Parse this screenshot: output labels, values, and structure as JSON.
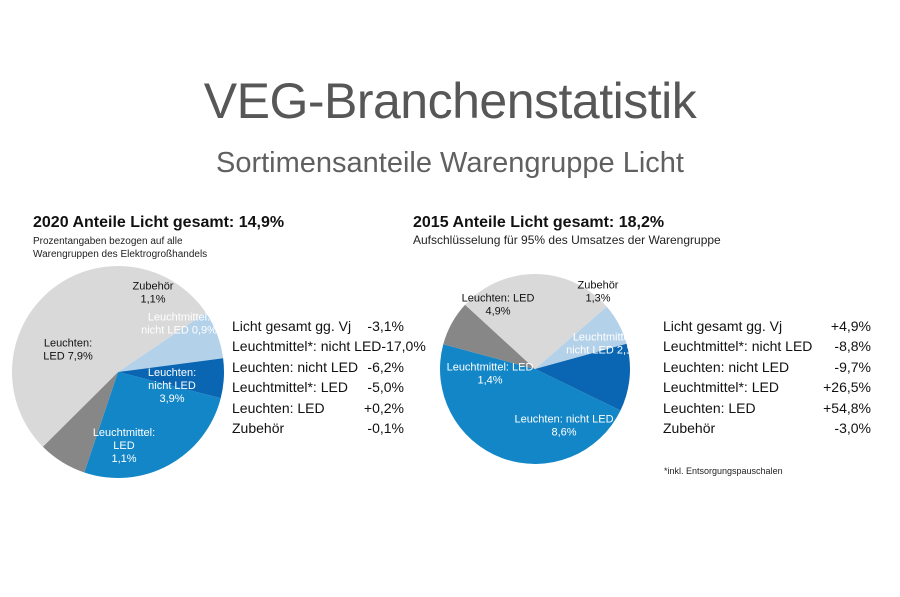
{
  "header": {
    "title": "VEG-Branchenstatistik",
    "subtitle": "Sortimensanteile Warengruppe Licht"
  },
  "colors": {
    "light_gray": "#d9d9d9",
    "light_blue": "#b4d1ea",
    "dark_blue": "#0a66b3",
    "mid_blue": "#1286c7",
    "gray": "#878787"
  },
  "chart_data": [
    {
      "type": "pie",
      "title": "2020 Anteile Licht gesamt: 14,9%",
      "note": [
        "Prozentangaben bezogen auf alle",
        "Warengruppen des Elektrogroßhandels"
      ],
      "slices": [
        {
          "key": "zubehoer",
          "lines": [
            "Zubehör",
            "1,1%"
          ],
          "value": 1.1,
          "color": "#b4d1ea"
        },
        {
          "key": "leuchtmittel_nicht_led",
          "lines": [
            "Leuchtmittel:",
            "nicht LED 0,9%"
          ],
          "value": 0.9,
          "color": "#0a66b3"
        },
        {
          "key": "leuchten_nicht_led",
          "lines": [
            "Leuchten:",
            "nicht LED",
            "3,9%"
          ],
          "value": 3.9,
          "color": "#1286c7"
        },
        {
          "key": "leuchtmittel_led",
          "lines": [
            "Leuchtmittel:",
            "LED",
            "1,1%"
          ],
          "value": 1.1,
          "color": "#878787"
        },
        {
          "key": "leuchten_led",
          "lines": [
            "Leuchten:",
            "LED 7,9%"
          ],
          "value": 7.9,
          "color": "#d9d9d9"
        }
      ],
      "changes": [
        {
          "label": "Licht gesamt gg. Vj",
          "value": "-3,1%"
        },
        {
          "label": "Leuchtmittel*: nicht LED",
          "value": "-17,0%"
        },
        {
          "label": "Leuchten: nicht LED",
          "value": "-6,2%"
        },
        {
          "label": "Leuchtmittel*: LED",
          "value": "-5,0%"
        },
        {
          "label": "Leuchten: LED",
          "value": "+0,2%"
        },
        {
          "label": "Zubehör",
          "value": "-0,1%"
        }
      ]
    },
    {
      "type": "pie",
      "title": "2015 Anteile Licht gesamt: 18,2%",
      "note": [
        "Aufschlüsselung für 95% des Umsatzes der Warengruppe"
      ],
      "slices": [
        {
          "key": "zubehoer",
          "lines": [
            "Zubehör",
            "1,3%"
          ],
          "value": 1.3,
          "color": "#b4d1ea"
        },
        {
          "key": "leuchtmittel_nicht_led",
          "lines": [
            "Leuchtmittel:",
            "nicht LED 2,1%"
          ],
          "value": 2.1,
          "color": "#0a66b3"
        },
        {
          "key": "leuchten_nicht_led",
          "lines": [
            "Leuchten: nicht LED",
            "8,6%"
          ],
          "value": 8.6,
          "color": "#1286c7"
        },
        {
          "key": "leuchtmittel_led",
          "lines": [
            "Leuchtmittel: LED",
            "1,4%"
          ],
          "value": 1.4,
          "color": "#878787"
        },
        {
          "key": "leuchten_led",
          "lines": [
            "Leuchten: LED",
            "4,9%"
          ],
          "value": 4.9,
          "color": "#d9d9d9"
        }
      ],
      "changes": [
        {
          "label": "Licht gesamt gg. Vj",
          "value": "+4,9%"
        },
        {
          "label": "Leuchtmittel*: nicht LED",
          "value": "-8,8%"
        },
        {
          "label": "Leuchten: nicht LED",
          "value": "-9,7%"
        },
        {
          "label": "Leuchtmittel*: LED",
          "value": "+26,5%"
        },
        {
          "label": "Leuchten: LED",
          "value": "+54,8%"
        },
        {
          "label": "Zubehör",
          "value": "-3,0%"
        }
      ],
      "footnote": "*inkl. Entsorgungspauschalen"
    }
  ]
}
